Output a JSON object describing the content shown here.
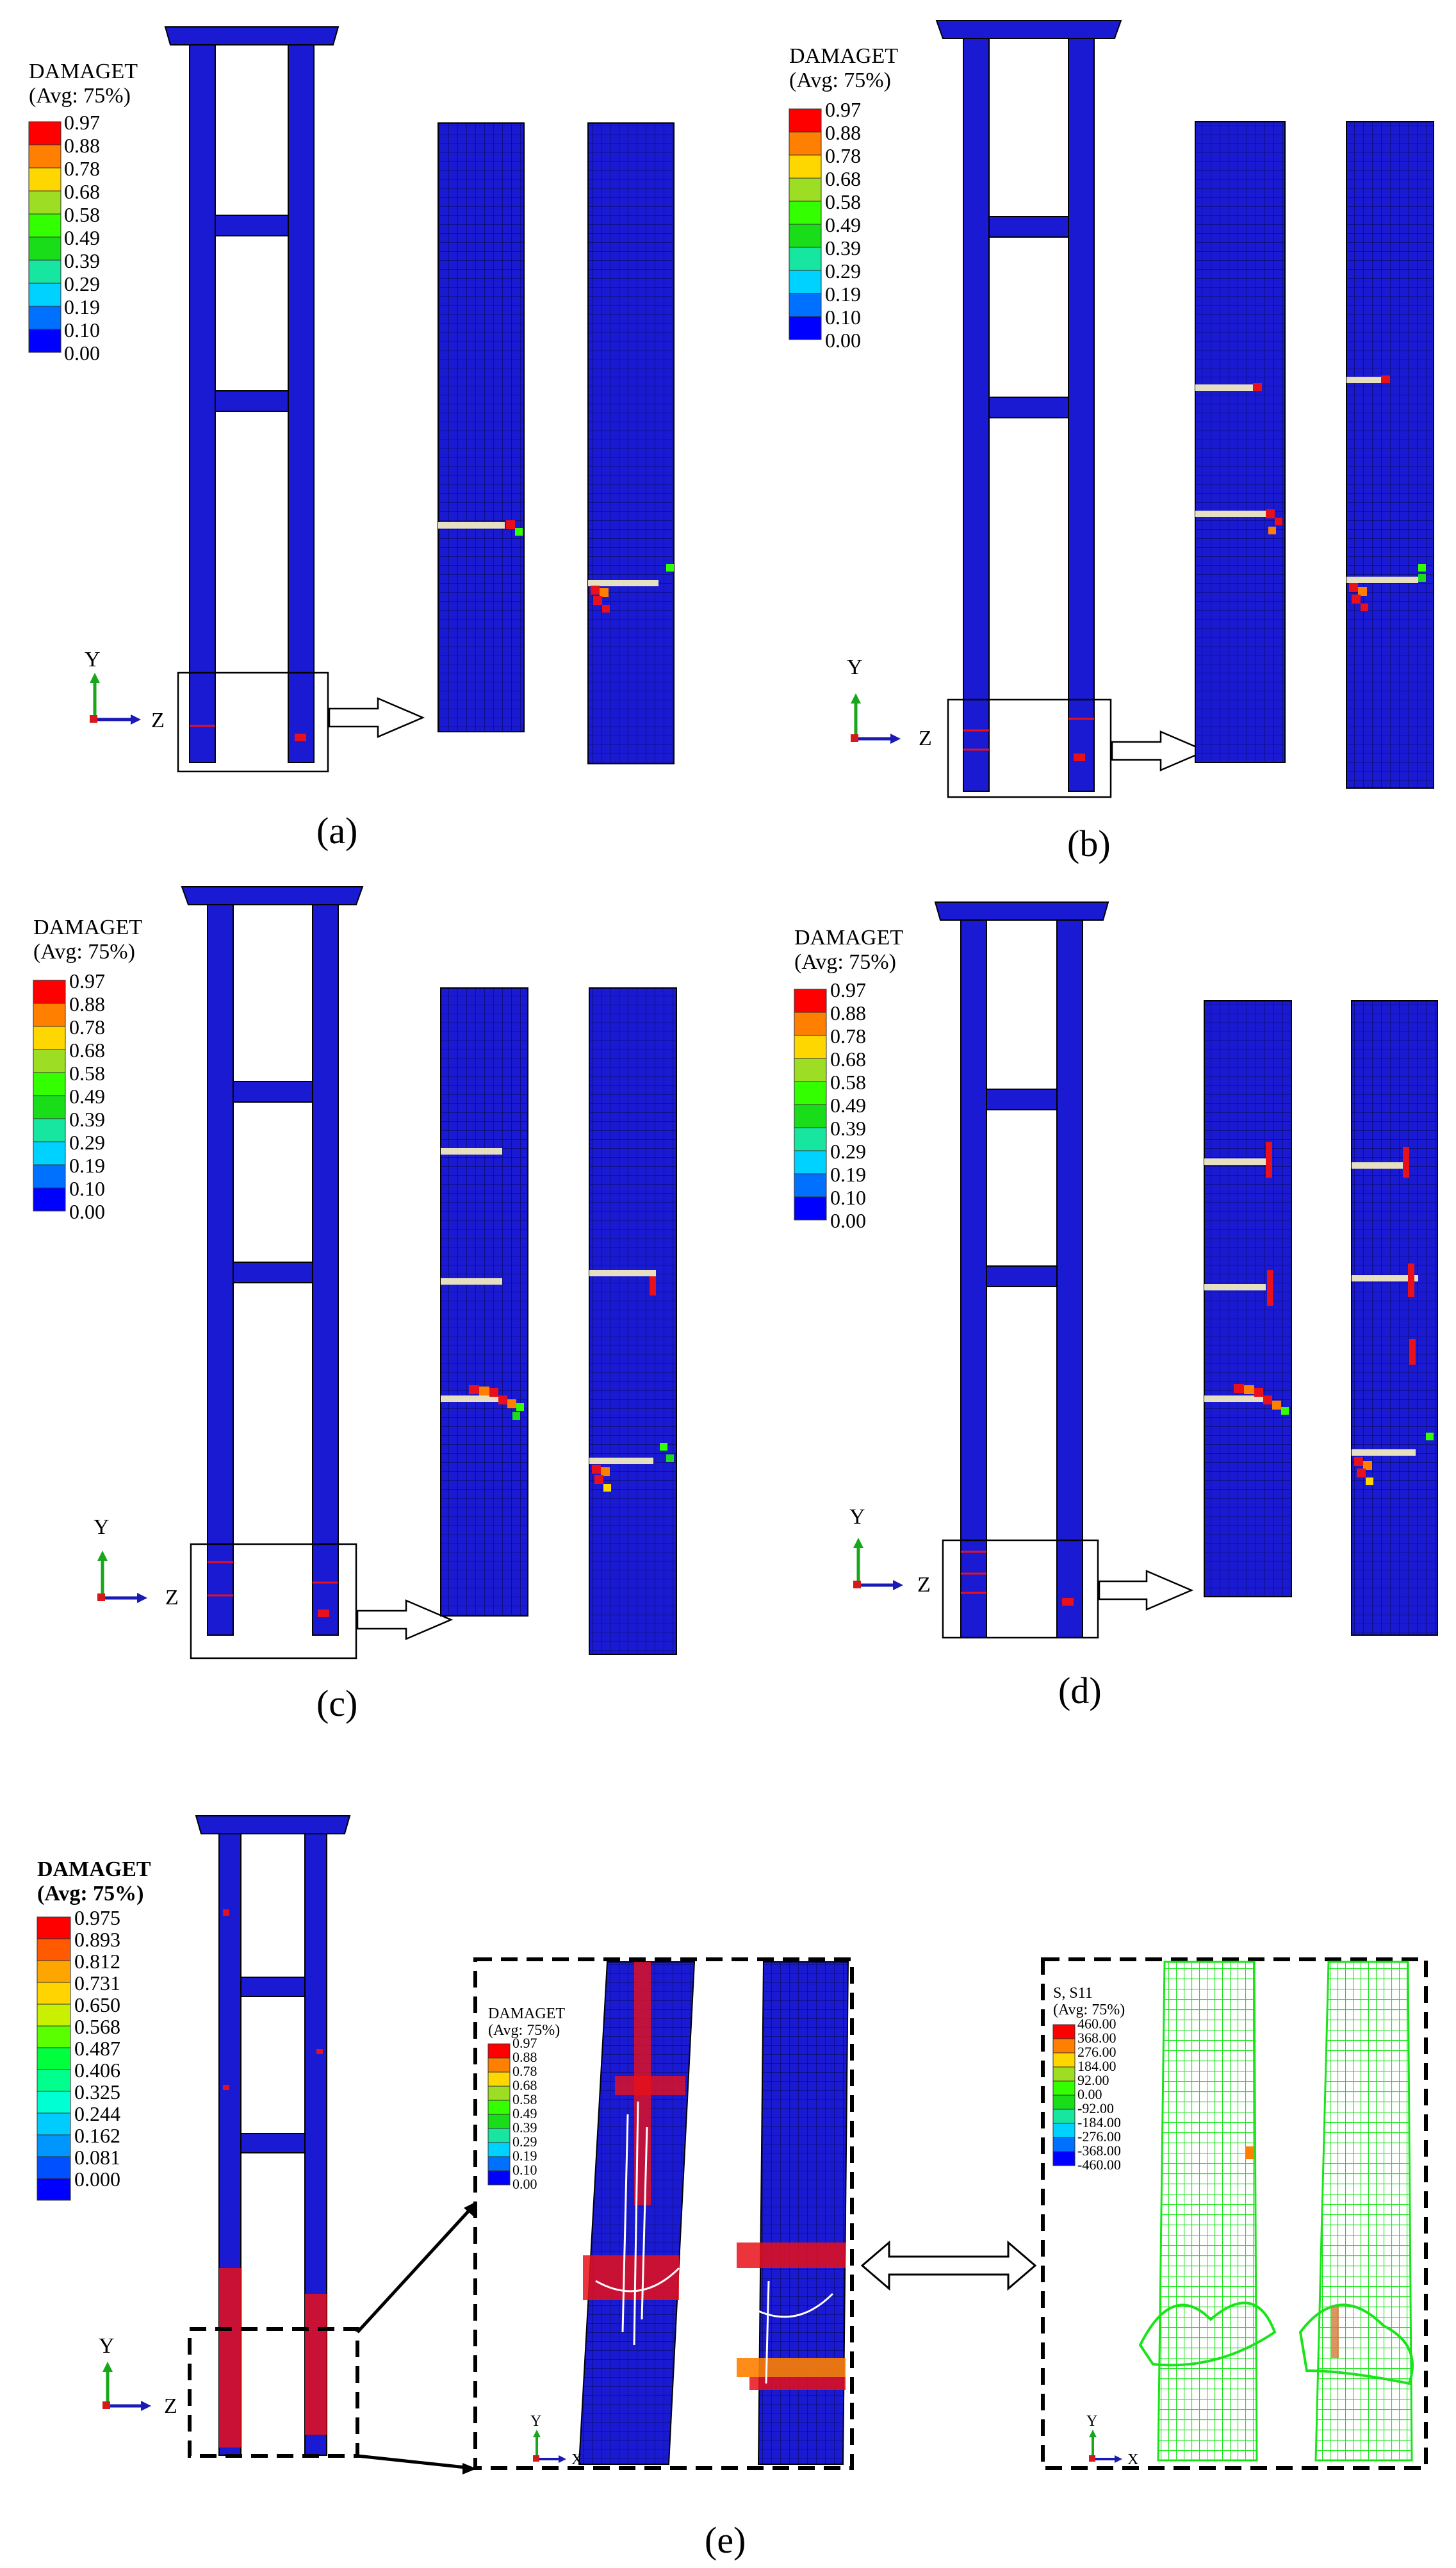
{
  "colors": {
    "column_blue": "#1a1ad2",
    "outline": "#000000",
    "crack_red": "#e8101a",
    "mesh_green": "#18e418",
    "axis_green": "#1aa61a",
    "axis_blue": "#1a1ab4",
    "axis_red": "#d41a1a"
  },
  "legend_colors_10": [
    "#ff0000",
    "#ff7f00",
    "#ffd700",
    "#9dde25",
    "#33ff00",
    "#19dd19",
    "#17e6a0",
    "#00d2ff",
    "#0070ff",
    "#0000ff"
  ],
  "legend_colors_13": [
    "#ff0000",
    "#ff5a00",
    "#ffa500",
    "#ffd400",
    "#c8f000",
    "#5aff00",
    "#00ff3c",
    "#00ff8c",
    "#00ffd2",
    "#00ccff",
    "#0096ff",
    "#0050ff",
    "#0000ff"
  ],
  "panels": {
    "a": {
      "caption": "(a)",
      "legend": {
        "title": "DAMAGET",
        "subtitle": "(Avg: 75%)",
        "values": [
          "0.97",
          "0.88",
          "0.78",
          "0.68",
          "0.58",
          "0.49",
          "0.39",
          "0.29",
          "0.19",
          "0.10",
          "0.00"
        ]
      },
      "axes": {
        "y": "Y",
        "z": "Z"
      }
    },
    "b": {
      "caption": "(b)",
      "legend": {
        "title": "DAMAGET",
        "subtitle": "(Avg: 75%)",
        "values": [
          "0.97",
          "0.88",
          "0.78",
          "0.68",
          "0.58",
          "0.49",
          "0.39",
          "0.29",
          "0.19",
          "0.10",
          "0.00"
        ]
      },
      "axes": {
        "y": "Y",
        "z": "Z"
      }
    },
    "c": {
      "caption": "(c)",
      "legend": {
        "title": "DAMAGET",
        "subtitle": "(Avg: 75%)",
        "values": [
          "0.97",
          "0.88",
          "0.78",
          "0.68",
          "0.58",
          "0.49",
          "0.39",
          "0.29",
          "0.19",
          "0.10",
          "0.00"
        ]
      },
      "axes": {
        "y": "Y",
        "z": "Z"
      }
    },
    "d": {
      "caption": "(d)",
      "legend": {
        "title": "DAMAGET",
        "subtitle": "(Avg: 75%)",
        "values": [
          "0.97",
          "0.88",
          "0.78",
          "0.68",
          "0.58",
          "0.49",
          "0.39",
          "0.29",
          "0.19",
          "0.10",
          "0.00"
        ]
      },
      "axes": {
        "y": "Y",
        "z": "Z"
      }
    },
    "e": {
      "caption": "(e)",
      "legend": {
        "title": "DAMAGET",
        "subtitle": "(Avg: 75%)",
        "values": [
          "0.975",
          "0.893",
          "0.812",
          "0.731",
          "0.650",
          "0.568",
          "0.487",
          "0.406",
          "0.325",
          "0.244",
          "0.162",
          "0.081",
          "0.000"
        ]
      },
      "axes": {
        "y": "Y",
        "z": "Z"
      },
      "zoom_legend": {
        "title": "DAMAGET",
        "subtitle": "(Avg: 75%)",
        "values": [
          "0.97",
          "0.88",
          "0.78",
          "0.68",
          "0.58",
          "0.49",
          "0.39",
          "0.29",
          "0.19",
          "0.10",
          "0.00"
        ]
      },
      "zoom_axes": {
        "y": "Y",
        "x": "X"
      },
      "stress_legend": {
        "title": "S, S11",
        "subtitle": "(Avg: 75%)",
        "values": [
          "460.00",
          "368.00",
          "276.00",
          "184.00",
          "92.00",
          "0.00",
          "-92.00",
          "-184.00",
          "-276.00",
          "-368.00",
          "-460.00"
        ]
      },
      "stress_axes": {
        "y": "Y",
        "x": "X"
      }
    }
  }
}
